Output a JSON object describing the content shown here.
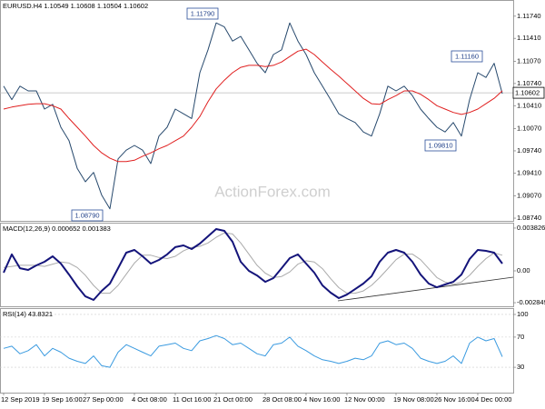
{
  "chart_data": [
    {
      "type": "line",
      "title": "EURUSD.H4  1.10549 1.10608 1.10504 1.10602",
      "watermark": "ActionForex.com",
      "annotations": [
        "1.11790",
        "1.08790",
        "1.11160",
        "1.09810"
      ],
      "price_line": 1.10602,
      "ylim": [
        1.087,
        1.1198
      ],
      "yticks": [
        {
          "value": 1.1174,
          "label": "1.11740"
        },
        {
          "value": 1.1141,
          "label": "1.11410"
        },
        {
          "value": 1.1107,
          "label": "1.11070"
        },
        {
          "value": 1.1074,
          "label": "1.10740"
        },
        {
          "value": 1.1041,
          "label": "1.10410"
        },
        {
          "value": 1.1007,
          "label": "1.10070"
        },
        {
          "value": 1.0974,
          "label": "1.09740"
        },
        {
          "value": 1.0941,
          "label": "1.09410"
        },
        {
          "value": 1.0907,
          "label": "1.09070"
        },
        {
          "value": 1.0874,
          "label": "1.08740"
        }
      ],
      "series": [
        {
          "color": "#27496d",
          "values": [
            1.107,
            1.105,
            1.107,
            1.1063,
            1.1063,
            1.1036,
            1.1043,
            1.1009,
            1.0989,
            1.0948,
            1.0928,
            1.0942,
            1.0908,
            1.0888,
            1.0962,
            1.0975,
            1.0982,
            1.0975,
            1.0955,
            1.0996,
            1.1009,
            1.1036,
            1.1029,
            1.1022,
            1.109,
            1.1124,
            1.1164,
            1.1158,
            1.1137,
            1.1144,
            1.1124,
            1.1104,
            1.109,
            1.1117,
            1.1124,
            1.1164,
            1.1137,
            1.1117,
            1.109,
            1.107,
            1.105,
            1.1029,
            1.1022,
            1.1016,
            1.1002,
            1.0996,
            1.1029,
            1.107,
            1.1063,
            1.107,
            1.1056,
            1.1036,
            1.1022,
            1.1009,
            1.1002,
            1.1016,
            1.0996,
            1.105,
            1.109,
            1.1083,
            1.1104,
            1.1059
          ]
        },
        {
          "color": "#e02020",
          "values": [
            1.1036,
            1.1039,
            1.1041,
            1.1043,
            1.1044,
            1.1044,
            1.1041,
            1.1036,
            1.1022,
            1.1009,
            1.0996,
            1.0982,
            1.0971,
            1.0963,
            1.0958,
            1.0958,
            1.096,
            1.0966,
            1.0971,
            1.0977,
            1.0982,
            1.0989,
            1.0996,
            1.1009,
            1.1025,
            1.1047,
            1.1066,
            1.1079,
            1.109,
            1.1098,
            1.1101,
            1.1101,
            1.1099,
            1.1101,
            1.1106,
            1.1114,
            1.1122,
            1.1125,
            1.1117,
            1.1106,
            1.1095,
            1.1085,
            1.1074,
            1.1063,
            1.1052,
            1.1044,
            1.1043,
            1.105,
            1.1056,
            1.1063,
            1.1063,
            1.1058,
            1.105,
            1.1041,
            1.1036,
            1.1031,
            1.1028,
            1.1031,
            1.1036,
            1.1044,
            1.1052,
            1.1063
          ]
        }
      ]
    },
    {
      "type": "line",
      "title": "MACD(12,26,9) 0.000652 0.001383",
      "ylim": [
        -0.00317,
        0.00431
      ],
      "yticks": [
        0.003826,
        {
          "value": 0,
          "label": "0.00"
        },
        -0.002849
      ],
      "series": [
        {
          "color": "#aaaaaa",
          "values": [
            0.0003,
            0.0004,
            0.0005,
            0.0005,
            0.0005,
            0.0004,
            0.0006,
            0.0008,
            0.0007,
            0.0003,
            -0.0004,
            -0.0013,
            -0.002,
            -0.002,
            -0.0013,
            -0.0003,
            0.0007,
            0.0014,
            0.0014,
            0.0012,
            0.0011,
            0.0013,
            0.0018,
            0.0021,
            0.0022,
            0.0025,
            0.003,
            0.0034,
            0.0033,
            0.0025,
            0.0015,
            0.0005,
            -0.0002,
            -0.0006,
            -0.0005,
            -0.0001,
            0.0006,
            0.0009,
            0.0008,
            0.0002,
            -0.0007,
            -0.0015,
            -0.002,
            -0.002,
            -0.0018,
            -0.0013,
            -0.0006,
            0.0002,
            0.001,
            0.0015,
            0.0015,
            0.001,
            0.0002,
            -0.0006,
            -0.001,
            -0.0012,
            -0.001,
            -0.0004,
            0.0004,
            0.0011,
            0.0016,
            0.0014
          ]
        },
        {
          "color": "#14147a",
          "values": [
            -0.00016,
            0.00147,
            0.00024,
            8e-05,
            0.00049,
            0.00081,
            0.0013,
            0.00065,
            -0.00033,
            -0.00138,
            -0.00228,
            -0.0026,
            -0.00179,
            -0.00114,
            0.00024,
            0.00163,
            0.00187,
            0.0013,
            0.00065,
            0.00098,
            0.00147,
            0.00212,
            0.00228,
            0.00195,
            0.00244,
            0.00309,
            0.00374,
            0.00358,
            0.0026,
            0.00081,
            0,
            -0.00041,
            -0.00098,
            -0.00065,
            0.00024,
            0.00114,
            0.00147,
            0.00065,
            -0.00016,
            -0.0013,
            -0.00195,
            -0.00244,
            -0.00212,
            -0.00163,
            -0.00114,
            -0.00049,
            0.00081,
            0.00163,
            0.00187,
            0.00163,
            0.00081,
            -0.00033,
            -0.00114,
            -0.00147,
            -0.00122,
            -0.00098,
            -0.00033,
            0.00106,
            0.00187,
            0.00179,
            0.00163,
            0.00065
          ]
        }
      ]
    },
    {
      "type": "line",
      "title": "RSI(14) 43.8321",
      "ylim": [
        -3.6,
        108.4
      ],
      "yticks": [
        100,
        70,
        30
      ],
      "categories": [
        "12 Sep 2019",
        null,
        null,
        null,
        null,
        "19 Sep 16:00",
        null,
        null,
        null,
        null,
        "27 Sep 00:00",
        null,
        null,
        null,
        null,
        null,
        "4 Oct 08:00",
        null,
        null,
        null,
        null,
        "11 Oct 16:00",
        null,
        null,
        null,
        null,
        "21 Oct 00:00",
        null,
        null,
        null,
        null,
        null,
        "28 Oct 08:00",
        null,
        null,
        null,
        null,
        "4 Nov 16:00",
        null,
        null,
        null,
        null,
        "12 Nov 00:00",
        null,
        null,
        null,
        null,
        null,
        "19 Nov 08:00",
        null,
        null,
        null,
        null,
        "26 Nov 16:00",
        null,
        null,
        null,
        null,
        "4 Dec 00:00",
        null,
        null,
        null
      ],
      "series": [
        {
          "color": "#3b9be0",
          "values": [
            55,
            58,
            48,
            52,
            60,
            45,
            55,
            50,
            42,
            38,
            35,
            45,
            32,
            30,
            50,
            60,
            55,
            50,
            45,
            58,
            60,
            62,
            55,
            52,
            65,
            68,
            72,
            68,
            60,
            62,
            55,
            48,
            45,
            60,
            62,
            70,
            58,
            52,
            45,
            40,
            38,
            35,
            38,
            42,
            40,
            45,
            62,
            65,
            60,
            62,
            55,
            42,
            38,
            35,
            38,
            45,
            35,
            62,
            70,
            65,
            68,
            44
          ]
        }
      ]
    }
  ]
}
